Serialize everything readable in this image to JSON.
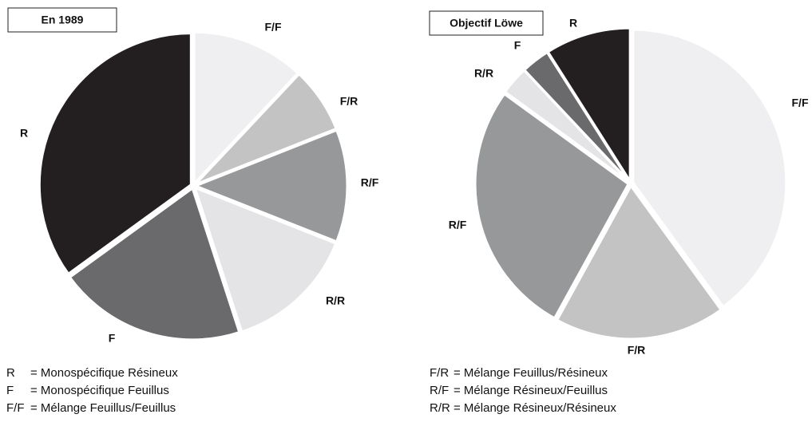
{
  "chart_data": [
    {
      "type": "pie",
      "title": "En 1989",
      "categories": [
        "F/F",
        "F/R",
        "R/F",
        "R/R",
        "F",
        "R"
      ],
      "values": [
        12,
        7,
        12,
        14,
        20,
        35
      ],
      "colors": [
        "#efeff1",
        "#c3c3c4",
        "#97989a",
        "#e4e4e6",
        "#6a6a6c",
        "#231f20"
      ]
    },
    {
      "type": "pie",
      "title": "Objectif Löwe",
      "categories": [
        "F/F",
        "F/R",
        "R/F",
        "R/R",
        "F",
        "R"
      ],
      "values": [
        40,
        18,
        27,
        3,
        3,
        9
      ],
      "colors": [
        "#efeff1",
        "#c3c3c4",
        "#97989a",
        "#e4e4e6",
        "#6a6a6c",
        "#231f20"
      ]
    }
  ],
  "legend": [
    [
      {
        "code": "R",
        "text": "= Monospécifique Résineux"
      },
      {
        "code": "F",
        "text": "= Monospécifique Feuillus"
      },
      {
        "code": "F/F",
        "text": "= Mélange Feuillus/Feuillus"
      }
    ],
    [
      {
        "code": "F/R",
        "text": "= Mélange Feuillus/Résineux"
      },
      {
        "code": "R/F",
        "text": "= Mélange Résineux/Feuillus"
      },
      {
        "code": "R/R",
        "text": "= Mélange Résineux/Résineux"
      }
    ]
  ]
}
